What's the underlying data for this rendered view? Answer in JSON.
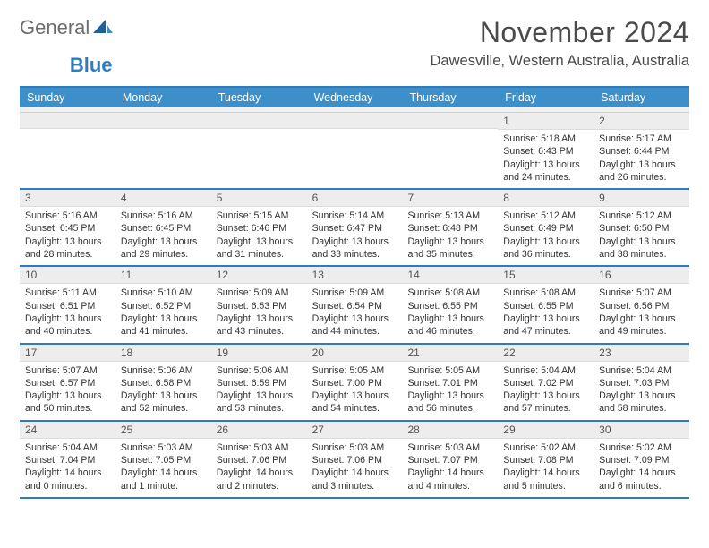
{
  "brand": {
    "word1": "General",
    "word2": "Blue"
  },
  "title": "November 2024",
  "location": "Dawesville, Western Australia, Australia",
  "colors": {
    "header_bar": "#3d8fc9",
    "rule": "#2f7bbf",
    "daynum_bg": "#ededed",
    "text": "#333333",
    "logo_grey": "#6d6d6d",
    "logo_blue": "#2f7bbf"
  },
  "day_headers": [
    "Sunday",
    "Monday",
    "Tuesday",
    "Wednesday",
    "Thursday",
    "Friday",
    "Saturday"
  ],
  "weeks": [
    [
      {
        "n": "",
        "sr": "",
        "ss": "",
        "dl1": "",
        "dl2": ""
      },
      {
        "n": "",
        "sr": "",
        "ss": "",
        "dl1": "",
        "dl2": ""
      },
      {
        "n": "",
        "sr": "",
        "ss": "",
        "dl1": "",
        "dl2": ""
      },
      {
        "n": "",
        "sr": "",
        "ss": "",
        "dl1": "",
        "dl2": ""
      },
      {
        "n": "",
        "sr": "",
        "ss": "",
        "dl1": "",
        "dl2": ""
      },
      {
        "n": "1",
        "sr": "Sunrise: 5:18 AM",
        "ss": "Sunset: 6:43 PM",
        "dl1": "Daylight: 13 hours",
        "dl2": "and 24 minutes."
      },
      {
        "n": "2",
        "sr": "Sunrise: 5:17 AM",
        "ss": "Sunset: 6:44 PM",
        "dl1": "Daylight: 13 hours",
        "dl2": "and 26 minutes."
      }
    ],
    [
      {
        "n": "3",
        "sr": "Sunrise: 5:16 AM",
        "ss": "Sunset: 6:45 PM",
        "dl1": "Daylight: 13 hours",
        "dl2": "and 28 minutes."
      },
      {
        "n": "4",
        "sr": "Sunrise: 5:16 AM",
        "ss": "Sunset: 6:45 PM",
        "dl1": "Daylight: 13 hours",
        "dl2": "and 29 minutes."
      },
      {
        "n": "5",
        "sr": "Sunrise: 5:15 AM",
        "ss": "Sunset: 6:46 PM",
        "dl1": "Daylight: 13 hours",
        "dl2": "and 31 minutes."
      },
      {
        "n": "6",
        "sr": "Sunrise: 5:14 AM",
        "ss": "Sunset: 6:47 PM",
        "dl1": "Daylight: 13 hours",
        "dl2": "and 33 minutes."
      },
      {
        "n": "7",
        "sr": "Sunrise: 5:13 AM",
        "ss": "Sunset: 6:48 PM",
        "dl1": "Daylight: 13 hours",
        "dl2": "and 35 minutes."
      },
      {
        "n": "8",
        "sr": "Sunrise: 5:12 AM",
        "ss": "Sunset: 6:49 PM",
        "dl1": "Daylight: 13 hours",
        "dl2": "and 36 minutes."
      },
      {
        "n": "9",
        "sr": "Sunrise: 5:12 AM",
        "ss": "Sunset: 6:50 PM",
        "dl1": "Daylight: 13 hours",
        "dl2": "and 38 minutes."
      }
    ],
    [
      {
        "n": "10",
        "sr": "Sunrise: 5:11 AM",
        "ss": "Sunset: 6:51 PM",
        "dl1": "Daylight: 13 hours",
        "dl2": "and 40 minutes."
      },
      {
        "n": "11",
        "sr": "Sunrise: 5:10 AM",
        "ss": "Sunset: 6:52 PM",
        "dl1": "Daylight: 13 hours",
        "dl2": "and 41 minutes."
      },
      {
        "n": "12",
        "sr": "Sunrise: 5:09 AM",
        "ss": "Sunset: 6:53 PM",
        "dl1": "Daylight: 13 hours",
        "dl2": "and 43 minutes."
      },
      {
        "n": "13",
        "sr": "Sunrise: 5:09 AM",
        "ss": "Sunset: 6:54 PM",
        "dl1": "Daylight: 13 hours",
        "dl2": "and 44 minutes."
      },
      {
        "n": "14",
        "sr": "Sunrise: 5:08 AM",
        "ss": "Sunset: 6:55 PM",
        "dl1": "Daylight: 13 hours",
        "dl2": "and 46 minutes."
      },
      {
        "n": "15",
        "sr": "Sunrise: 5:08 AM",
        "ss": "Sunset: 6:55 PM",
        "dl1": "Daylight: 13 hours",
        "dl2": "and 47 minutes."
      },
      {
        "n": "16",
        "sr": "Sunrise: 5:07 AM",
        "ss": "Sunset: 6:56 PM",
        "dl1": "Daylight: 13 hours",
        "dl2": "and 49 minutes."
      }
    ],
    [
      {
        "n": "17",
        "sr": "Sunrise: 5:07 AM",
        "ss": "Sunset: 6:57 PM",
        "dl1": "Daylight: 13 hours",
        "dl2": "and 50 minutes."
      },
      {
        "n": "18",
        "sr": "Sunrise: 5:06 AM",
        "ss": "Sunset: 6:58 PM",
        "dl1": "Daylight: 13 hours",
        "dl2": "and 52 minutes."
      },
      {
        "n": "19",
        "sr": "Sunrise: 5:06 AM",
        "ss": "Sunset: 6:59 PM",
        "dl1": "Daylight: 13 hours",
        "dl2": "and 53 minutes."
      },
      {
        "n": "20",
        "sr": "Sunrise: 5:05 AM",
        "ss": "Sunset: 7:00 PM",
        "dl1": "Daylight: 13 hours",
        "dl2": "and 54 minutes."
      },
      {
        "n": "21",
        "sr": "Sunrise: 5:05 AM",
        "ss": "Sunset: 7:01 PM",
        "dl1": "Daylight: 13 hours",
        "dl2": "and 56 minutes."
      },
      {
        "n": "22",
        "sr": "Sunrise: 5:04 AM",
        "ss": "Sunset: 7:02 PM",
        "dl1": "Daylight: 13 hours",
        "dl2": "and 57 minutes."
      },
      {
        "n": "23",
        "sr": "Sunrise: 5:04 AM",
        "ss": "Sunset: 7:03 PM",
        "dl1": "Daylight: 13 hours",
        "dl2": "and 58 minutes."
      }
    ],
    [
      {
        "n": "24",
        "sr": "Sunrise: 5:04 AM",
        "ss": "Sunset: 7:04 PM",
        "dl1": "Daylight: 14 hours",
        "dl2": "and 0 minutes."
      },
      {
        "n": "25",
        "sr": "Sunrise: 5:03 AM",
        "ss": "Sunset: 7:05 PM",
        "dl1": "Daylight: 14 hours",
        "dl2": "and 1 minute."
      },
      {
        "n": "26",
        "sr": "Sunrise: 5:03 AM",
        "ss": "Sunset: 7:06 PM",
        "dl1": "Daylight: 14 hours",
        "dl2": "and 2 minutes."
      },
      {
        "n": "27",
        "sr": "Sunrise: 5:03 AM",
        "ss": "Sunset: 7:06 PM",
        "dl1": "Daylight: 14 hours",
        "dl2": "and 3 minutes."
      },
      {
        "n": "28",
        "sr": "Sunrise: 5:03 AM",
        "ss": "Sunset: 7:07 PM",
        "dl1": "Daylight: 14 hours",
        "dl2": "and 4 minutes."
      },
      {
        "n": "29",
        "sr": "Sunrise: 5:02 AM",
        "ss": "Sunset: 7:08 PM",
        "dl1": "Daylight: 14 hours",
        "dl2": "and 5 minutes."
      },
      {
        "n": "30",
        "sr": "Sunrise: 5:02 AM",
        "ss": "Sunset: 7:09 PM",
        "dl1": "Daylight: 14 hours",
        "dl2": "and 6 minutes."
      }
    ]
  ]
}
